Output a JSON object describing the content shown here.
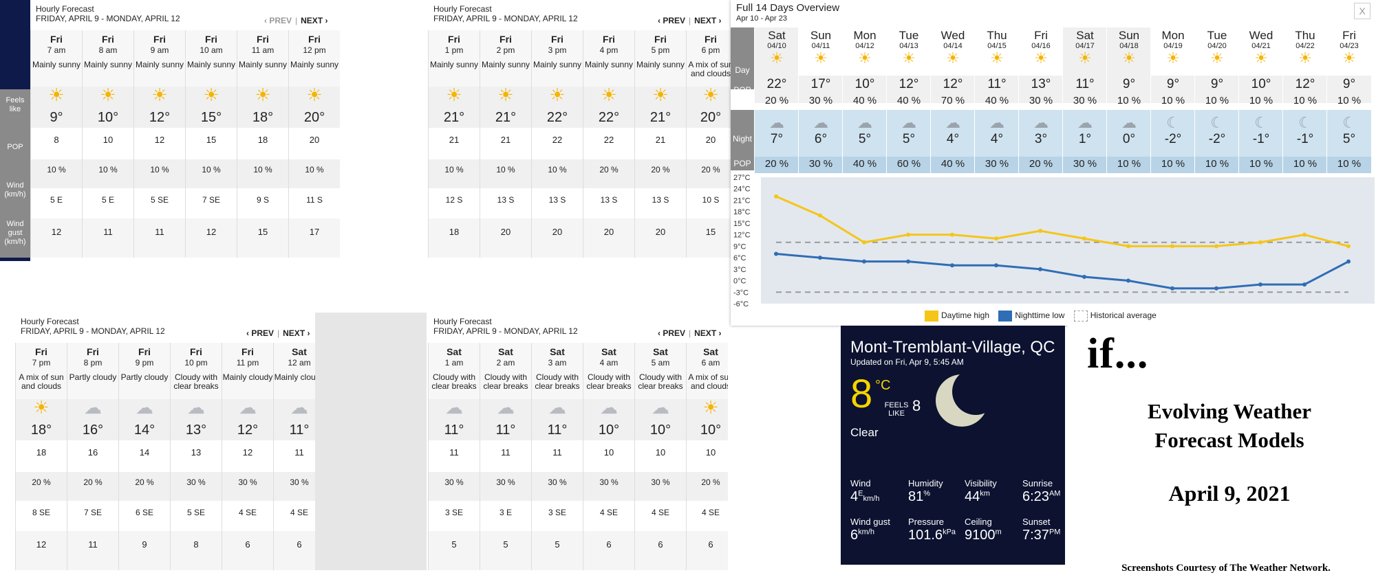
{
  "hourly_common": {
    "title": "Hourly Forecast",
    "subtitle": "FRIDAY, APRIL 9 - MONDAY, APRIL 12",
    "prev": "‹ PREV",
    "next": "NEXT ›",
    "sep": "|"
  },
  "row_labels": {
    "feels": "Feels like",
    "pop": "POP",
    "wind": "Wind (km/h)",
    "gust": "Wind gust (km/h)"
  },
  "panel1": [
    {
      "day": "Fri",
      "time": "7 am",
      "cond": "Mainly sunny",
      "icon": "sun-icon",
      "temp": "9°",
      "feels": "8",
      "pop": "10 %",
      "wind": "5 E",
      "gust": "12"
    },
    {
      "day": "Fri",
      "time": "8 am",
      "cond": "Mainly sunny",
      "icon": "sun-icon",
      "temp": "10°",
      "feels": "10",
      "pop": "10 %",
      "wind": "5 E",
      "gust": "11"
    },
    {
      "day": "Fri",
      "time": "9 am",
      "cond": "Mainly sunny",
      "icon": "sun-icon",
      "temp": "12°",
      "feels": "12",
      "pop": "10 %",
      "wind": "5 SE",
      "gust": "11"
    },
    {
      "day": "Fri",
      "time": "10 am",
      "cond": "Mainly sunny",
      "icon": "sun-icon",
      "temp": "15°",
      "feels": "15",
      "pop": "10 %",
      "wind": "7 SE",
      "gust": "12"
    },
    {
      "day": "Fri",
      "time": "11 am",
      "cond": "Mainly sunny",
      "icon": "sun-icon",
      "temp": "18°",
      "feels": "18",
      "pop": "10 %",
      "wind": "9 S",
      "gust": "15"
    },
    {
      "day": "Fri",
      "time": "12 pm",
      "cond": "Mainly sunny",
      "icon": "sun-icon",
      "temp": "20°",
      "feels": "20",
      "pop": "10 %",
      "wind": "11 S",
      "gust": "17"
    }
  ],
  "panel2": [
    {
      "day": "Fri",
      "time": "1 pm",
      "cond": "Mainly sunny",
      "icon": "sun-icon",
      "temp": "21°",
      "feels": "21",
      "pop": "10 %",
      "wind": "12 S",
      "gust": "18"
    },
    {
      "day": "Fri",
      "time": "2 pm",
      "cond": "Mainly sunny",
      "icon": "sun-icon",
      "temp": "21°",
      "feels": "21",
      "pop": "10 %",
      "wind": "13 S",
      "gust": "20"
    },
    {
      "day": "Fri",
      "time": "3 pm",
      "cond": "Mainly sunny",
      "icon": "sun-icon",
      "temp": "22°",
      "feels": "22",
      "pop": "10 %",
      "wind": "13 S",
      "gust": "20"
    },
    {
      "day": "Fri",
      "time": "4 pm",
      "cond": "Mainly sunny",
      "icon": "sun-icon",
      "temp": "22°",
      "feels": "22",
      "pop": "20 %",
      "wind": "13 S",
      "gust": "20"
    },
    {
      "day": "Fri",
      "time": "5 pm",
      "cond": "Mainly sunny",
      "icon": "sun-icon",
      "temp": "21°",
      "feels": "21",
      "pop": "20 %",
      "wind": "13 S",
      "gust": "20"
    },
    {
      "day": "Fri",
      "time": "6 pm",
      "cond": "A mix of sun and clouds",
      "icon": "sun-cloud-icon",
      "temp": "20°",
      "feels": "20",
      "pop": "20 %",
      "wind": "10 S",
      "gust": "15"
    }
  ],
  "panel3": [
    {
      "day": "Fri",
      "time": "7 pm",
      "cond": "A mix of sun and clouds",
      "icon": "sun-cloud-icon",
      "temp": "18°",
      "feels": "18",
      "pop": "20 %",
      "wind": "8 SE",
      "gust": "12"
    },
    {
      "day": "Fri",
      "time": "8 pm",
      "cond": "Partly cloudy",
      "icon": "moon-cloud-icon",
      "temp": "16°",
      "feels": "16",
      "pop": "20 %",
      "wind": "7 SE",
      "gust": "11"
    },
    {
      "day": "Fri",
      "time": "9 pm",
      "cond": "Partly cloudy",
      "icon": "moon-cloud-icon",
      "temp": "14°",
      "feels": "14",
      "pop": "20 %",
      "wind": "6 SE",
      "gust": "9"
    },
    {
      "day": "Fri",
      "time": "10 pm",
      "cond": "Cloudy with clear breaks",
      "icon": "cloud-icon",
      "temp": "13°",
      "feels": "13",
      "pop": "30 %",
      "wind": "5 SE",
      "gust": "8"
    },
    {
      "day": "Fri",
      "time": "11 pm",
      "cond": "Mainly cloudy",
      "icon": "cloud-icon",
      "temp": "12°",
      "feels": "12",
      "pop": "30 %",
      "wind": "4 SE",
      "gust": "6"
    },
    {
      "day": "Sat",
      "time": "12 am",
      "cond": "Mainly cloudy",
      "icon": "cloud-icon",
      "temp": "11°",
      "feels": "11",
      "pop": "30 %",
      "wind": "4 SE",
      "gust": "6"
    }
  ],
  "panel4": [
    {
      "day": "Sat",
      "time": "1 am",
      "cond": "Cloudy with clear breaks",
      "icon": "cloud-icon",
      "temp": "11°",
      "feels": "11",
      "pop": "30 %",
      "wind": "3 SE",
      "gust": "5"
    },
    {
      "day": "Sat",
      "time": "2 am",
      "cond": "Cloudy with clear breaks",
      "icon": "cloud-icon",
      "temp": "11°",
      "feels": "11",
      "pop": "30 %",
      "wind": "3 E",
      "gust": "5"
    },
    {
      "day": "Sat",
      "time": "3 am",
      "cond": "Cloudy with clear breaks",
      "icon": "cloud-icon",
      "temp": "11°",
      "feels": "11",
      "pop": "30 %",
      "wind": "3 SE",
      "gust": "5"
    },
    {
      "day": "Sat",
      "time": "4 am",
      "cond": "Cloudy with clear breaks",
      "icon": "cloud-icon",
      "temp": "10°",
      "feels": "10",
      "pop": "30 %",
      "wind": "4 SE",
      "gust": "6"
    },
    {
      "day": "Sat",
      "time": "5 am",
      "cond": "Cloudy with clear breaks",
      "icon": "cloud-icon",
      "temp": "10°",
      "feels": "10",
      "pop": "30 %",
      "wind": "4 SE",
      "gust": "6"
    },
    {
      "day": "Sat",
      "time": "6 am",
      "cond": "A mix of sun and clouds",
      "icon": "sun-cloud-icon",
      "temp": "10°",
      "feels": "10",
      "pop": "20 %",
      "wind": "4 SE",
      "gust": "6"
    }
  ],
  "overview": {
    "title": "Full 14 Days Overview",
    "range": "Apr 10 - Apr 23",
    "close": "X",
    "labels": {
      "day": "Day",
      "pop": "POP",
      "night": "Night"
    },
    "days": [
      {
        "d": "Sat",
        "date": "04/10",
        "hi": "22°",
        "dpop": "20 %",
        "lo": "7°",
        "npop": "20 %"
      },
      {
        "d": "Sun",
        "date": "04/11",
        "hi": "17°",
        "dpop": "30 %",
        "lo": "6°",
        "npop": "30 %"
      },
      {
        "d": "Mon",
        "date": "04/12",
        "hi": "10°",
        "dpop": "40 %",
        "lo": "5°",
        "npop": "40 %"
      },
      {
        "d": "Tue",
        "date": "04/13",
        "hi": "12°",
        "dpop": "40 %",
        "lo": "5°",
        "npop": "60 %"
      },
      {
        "d": "Wed",
        "date": "04/14",
        "hi": "12°",
        "dpop": "70 %",
        "lo": "4°",
        "npop": "40 %"
      },
      {
        "d": "Thu",
        "date": "04/15",
        "hi": "11°",
        "dpop": "40 %",
        "lo": "4°",
        "npop": "30 %"
      },
      {
        "d": "Fri",
        "date": "04/16",
        "hi": "13°",
        "dpop": "30 %",
        "lo": "3°",
        "npop": "20 %"
      },
      {
        "d": "Sat",
        "date": "04/17",
        "hi": "11°",
        "dpop": "30 %",
        "lo": "1°",
        "npop": "30 %"
      },
      {
        "d": "Sun",
        "date": "04/18",
        "hi": "9°",
        "dpop": "10 %",
        "lo": "0°",
        "npop": "10 %"
      },
      {
        "d": "Mon",
        "date": "04/19",
        "hi": "9°",
        "dpop": "10 %",
        "lo": "-2°",
        "npop": "10 %"
      },
      {
        "d": "Tue",
        "date": "04/20",
        "hi": "9°",
        "dpop": "10 %",
        "lo": "-2°",
        "npop": "10 %"
      },
      {
        "d": "Wed",
        "date": "04/21",
        "hi": "10°",
        "dpop": "10 %",
        "lo": "-1°",
        "npop": "10 %"
      },
      {
        "d": "Thu",
        "date": "04/22",
        "hi": "12°",
        "dpop": "10 %",
        "lo": "-1°",
        "npop": "10 %"
      },
      {
        "d": "Fri",
        "date": "04/23",
        "hi": "9°",
        "dpop": "10 %",
        "lo": "5°",
        "npop": "10 %"
      }
    ]
  },
  "chart_data": {
    "type": "line",
    "x": [
      "04/10",
      "04/11",
      "04/12",
      "04/13",
      "04/14",
      "04/15",
      "04/16",
      "04/17",
      "04/18",
      "04/19",
      "04/20",
      "04/21",
      "04/22",
      "04/23"
    ],
    "series": [
      {
        "name": "Daytime high",
        "color": "#f5c518",
        "values": [
          22,
          17,
          10,
          12,
          12,
          11,
          13,
          11,
          9,
          9,
          9,
          10,
          12,
          9
        ]
      },
      {
        "name": "Nighttime low",
        "color": "#2f6db5",
        "values": [
          7,
          6,
          5,
          5,
          4,
          4,
          3,
          1,
          0,
          -2,
          -2,
          -1,
          -1,
          5
        ]
      },
      {
        "name": "Historical average",
        "color": "#999999",
        "values": [
          10,
          10,
          10,
          10,
          10,
          10,
          10,
          10,
          10,
          10,
          10,
          10,
          10,
          10
        ]
      }
    ],
    "historical_low": [
      -3,
      -3,
      -3,
      -3,
      -3,
      -3,
      -3,
      -3,
      -3,
      -3,
      -3,
      -3,
      -3,
      -3
    ],
    "yticks": [
      "27°C",
      "24°C",
      "21°C",
      "18°C",
      "15°C",
      "12°C",
      "9°C",
      "6°C",
      "3°C",
      "0°C",
      "-3°C",
      "-6°C"
    ],
    "ylim": [
      -6,
      27
    ],
    "legend_position": "bottom-center"
  },
  "current": {
    "location": "Mont-Tremblant-Village, QC",
    "updated": "Updated on Fri, Apr 9, 5:45 AM",
    "temp": "8",
    "unit": "°C",
    "feels_label": "FEELS LIKE",
    "feels": "8",
    "condition": "Clear",
    "wind_label": "Wind",
    "wind": "4",
    "wind_dir": "E",
    "wind_unit": "km/h",
    "humidity_label": "Humidity",
    "humidity": "81",
    "humidity_unit": "%",
    "visibility_label": "Visibility",
    "visibility": "44",
    "visibility_unit": "km",
    "sunrise_label": "Sunrise",
    "sunrise": "6:23",
    "sunrise_unit": "AM",
    "gust_label": "Wind gust",
    "gust": "6",
    "gust_unit": "km/h",
    "pressure_label": "Pressure",
    "pressure": "101.6",
    "pressure_unit": "kPa",
    "ceiling_label": "Ceiling",
    "ceiling": "9100",
    "ceiling_unit": "m",
    "sunset_label": "Sunset",
    "sunset": "7:37",
    "sunset_unit": "PM"
  },
  "titlecard": {
    "brand": "if...",
    "heading": "Evolving Weather Forecast Models",
    "date": "April 9, 2021",
    "credit": "Screenshots Courtesy of The Weather Network."
  }
}
